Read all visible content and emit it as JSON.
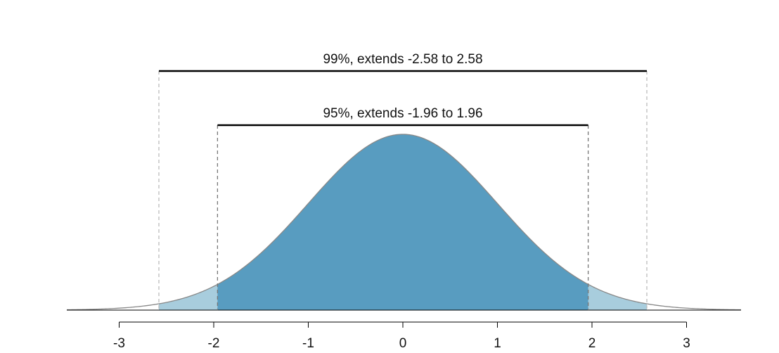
{
  "chart_data": {
    "type": "area",
    "distribution": "standard-normal",
    "xlim": [
      -3.55,
      3.55
    ],
    "x_ticks": [
      -3,
      -2,
      -1,
      0,
      1,
      2,
      3
    ],
    "x_tick_labels": [
      "-3",
      "-2",
      "-1",
      "0",
      "1",
      "2",
      "3"
    ],
    "regions": [
      {
        "from": -2.58,
        "to": 2.58,
        "color": "#a8cddd"
      },
      {
        "from": -1.96,
        "to": 1.96,
        "color": "#589cc0"
      }
    ],
    "intervals": [
      {
        "label": "99%, extends -2.58 to 2.58",
        "from": -2.58,
        "to": 2.58,
        "guide_color": "#bbbbbb"
      },
      {
        "label": "95%, extends -1.96 to 1.96",
        "from": -1.96,
        "to": 1.96,
        "guide_color": "#777777"
      }
    ],
    "colors": {
      "curve": "#888888",
      "bracket": "#000000",
      "axis": "#000000"
    }
  }
}
